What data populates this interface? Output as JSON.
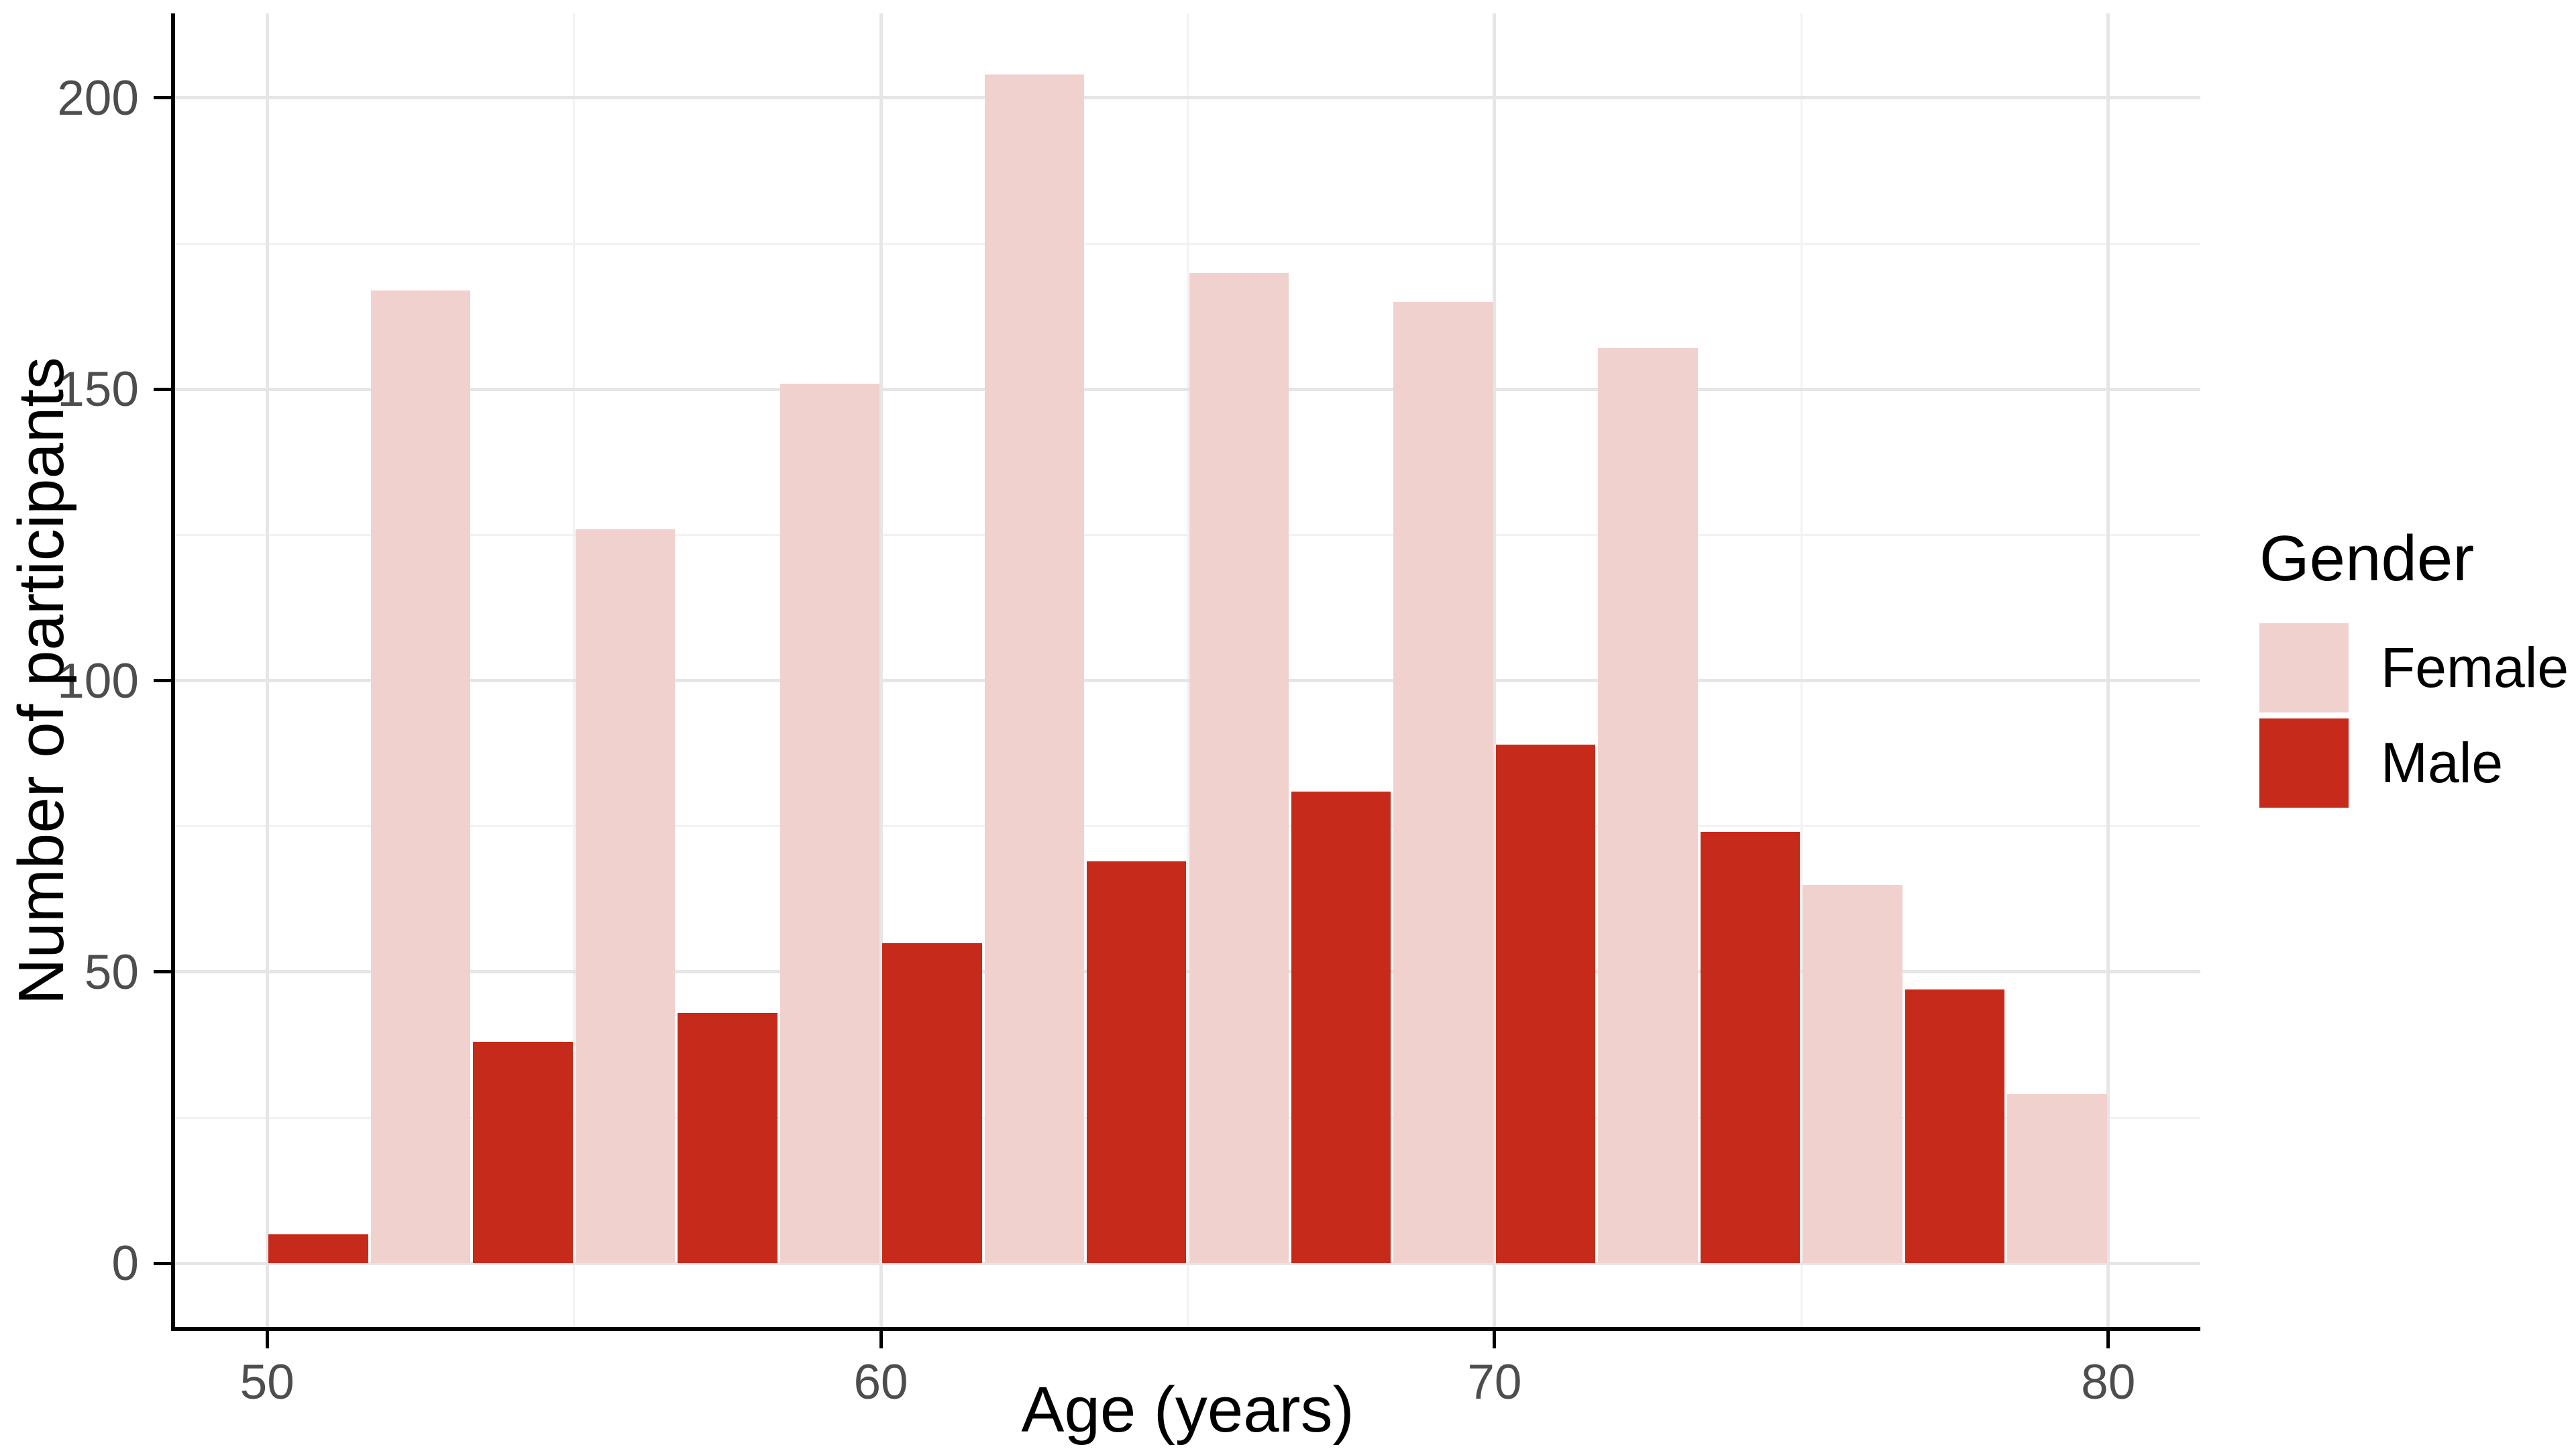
{
  "figure": {
    "background": "#ffffff"
  },
  "chart_data": {
    "type": "bar",
    "subtype": "dodged-histogram",
    "title": "",
    "xlabel": "Age (years)",
    "ylabel": "Number of participants",
    "legend_title": "Gender",
    "legend_position": "right",
    "bin_width_years": 3.3333,
    "bin_centers": [
      50,
      53.333,
      56.667,
      60,
      63.333,
      66.667,
      70,
      73.333,
      76.667,
      80
    ],
    "series": [
      {
        "name": "Female",
        "color": "#F1D1CD",
        "values": [
          null,
          167,
          126,
          151,
          204,
          170,
          165,
          157,
          65,
          29
        ]
      },
      {
        "name": "Male",
        "color": "#C62A1A",
        "values": [
          5,
          38,
          43,
          55,
          69,
          81,
          89,
          74,
          47,
          null
        ]
      }
    ],
    "x_ticks": [
      50,
      60,
      70,
      80
    ],
    "y_ticks": [
      0,
      50,
      100,
      150,
      200
    ],
    "x_minor_gridlines": [
      55,
      65,
      75
    ],
    "y_minor_gridlines": [
      25,
      75,
      125,
      175
    ],
    "xlim": [
      48.5,
      81.5
    ],
    "ylim": [
      -10.9,
      214.5
    ],
    "grid": true,
    "colors": {
      "grid_major": "#E6E6E6",
      "grid_minor": "#F2F2F2",
      "axis_line": "#000000",
      "tick_label": "#4D4D4D",
      "axis_title": "#000000"
    }
  }
}
